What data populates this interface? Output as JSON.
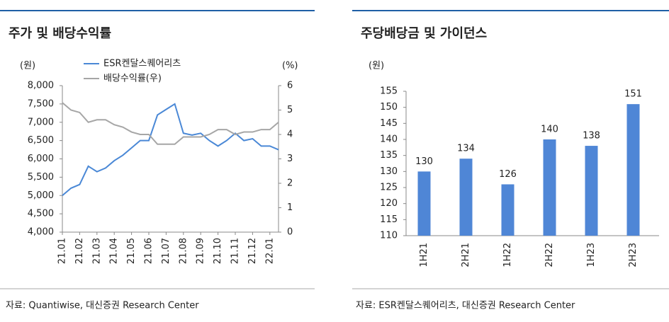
{
  "chart_data": [
    {
      "type": "line",
      "title": "주가 및 배당수익률",
      "y_label": "(원)",
      "y2_label": "(%)",
      "source": "자료: Quantiwise, 대신증권 Research Center",
      "categories": [
        "21.01",
        null,
        "21.02",
        null,
        "21.03",
        null,
        "21.04",
        null,
        "21.05",
        null,
        "21.06",
        null,
        "21.07",
        null,
        "21.08",
        null,
        "21.09",
        null,
        "21.10",
        null,
        "21.11",
        null,
        "21.12",
        null,
        "22.01",
        null
      ],
      "series": [
        {
          "name": "ESR켄달스퀘어리츠",
          "color": "#4a88d6",
          "values": [
            5000,
            5200,
            5300,
            5800,
            5650,
            5750,
            5950,
            6100,
            6300,
            6500,
            6500,
            7200,
            7350,
            7500,
            6700,
            6650,
            6700,
            6500,
            6350,
            6500,
            6700,
            6500,
            6550,
            6350,
            6350,
            6250
          ]
        },
        {
          "name": "배당수익률(우)",
          "color": "#a6a6a6",
          "axis": "y2",
          "values": [
            5.3,
            5.0,
            4.9,
            4.5,
            4.6,
            4.6,
            4.4,
            4.3,
            4.1,
            4.0,
            4.0,
            3.6,
            3.6,
            3.6,
            3.9,
            3.9,
            3.9,
            4.0,
            4.2,
            4.2,
            4.0,
            4.1,
            4.1,
            4.2,
            4.2,
            4.5
          ]
        }
      ],
      "ylim": [
        4000,
        8000
      ],
      "yticks": [
        {
          "value": 4000,
          "label": "4,000"
        },
        {
          "value": 4500,
          "label": "4,500"
        },
        {
          "value": 5000,
          "label": "5,000"
        },
        {
          "value": 5500,
          "label": "5,500"
        },
        {
          "value": 6000,
          "label": "6,000"
        },
        {
          "value": 6500,
          "label": "6,500"
        },
        {
          "value": 7000,
          "label": "7,000"
        },
        {
          "value": 7500,
          "label": "7,500"
        },
        {
          "value": 8000,
          "label": "8,000"
        }
      ],
      "y2lim": [
        0,
        6
      ],
      "y2ticks": [
        0,
        1,
        2,
        3,
        4,
        5,
        6
      ]
    },
    {
      "type": "bar",
      "title": "주당배당금 및 가이던스",
      "y_label": "(원)",
      "source": "자료: ESR켄달스퀘어리츠, 대신증권 Research Center",
      "categories": [
        "1H21",
        "2H21",
        "1H22",
        "2H22",
        "1H23",
        "2H23"
      ],
      "values": [
        130,
        134,
        126,
        140,
        138,
        151
      ],
      "color": "#4f86d6",
      "ylim": [
        110,
        155
      ],
      "yticks": [
        110,
        115,
        120,
        125,
        130,
        135,
        140,
        145,
        150,
        155
      ]
    }
  ]
}
